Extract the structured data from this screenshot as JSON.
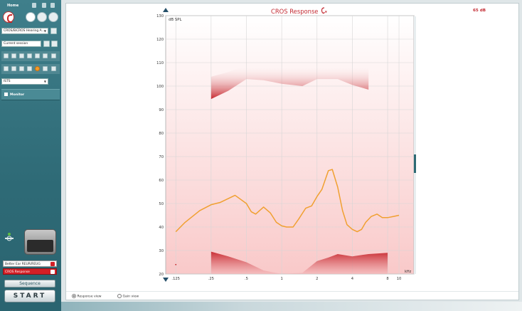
{
  "sidebar": {
    "home_label": "Home",
    "hearing_aid_select": "CROS/BiCROS Hearing A...",
    "session_select": "Current session",
    "stimulus_select": "ISTS",
    "monitor_label": "Monitor",
    "programs": [
      {
        "label": "Better Ear REUR/REUG"
      },
      {
        "label": "CROS Response"
      }
    ],
    "sequence_label": "Sequence",
    "start_label": "START"
  },
  "chart": {
    "title": "CROS Response",
    "level": "65 dB"
  },
  "view_options": {
    "response_view": "Response view",
    "gain_view": "Gain view",
    "selected": "Response view"
  },
  "chart_data": {
    "type": "line",
    "ylabel": "dB SPL",
    "xunit": "kHz",
    "ylim": [
      20,
      130
    ],
    "yticks": [
      20,
      30,
      40,
      50,
      60,
      70,
      80,
      90,
      100,
      110,
      120,
      130
    ],
    "xticks_khz": [
      0.125,
      0.25,
      0.5,
      1,
      2,
      4,
      8,
      10
    ],
    "xtick_labels": [
      ".125",
      ".25",
      ".5",
      "1",
      "2",
      "4",
      "8",
      "10"
    ],
    "grid": true,
    "series": [
      {
        "color": "#f0a030",
        "x": [
          0.125,
          0.15,
          0.2,
          0.25,
          0.3,
          0.4,
          0.5,
          0.55,
          0.6,
          0.7,
          0.8,
          0.9,
          1.0,
          1.1,
          1.25,
          1.4,
          1.6,
          1.8,
          2.0,
          2.2,
          2.5,
          2.7,
          3.0,
          3.3,
          3.6,
          4.0,
          4.4,
          4.8,
          5.2,
          5.8,
          6.5,
          7.2,
          8.0,
          9.0,
          10.0
        ],
        "y": [
          38,
          42,
          47,
          49.5,
          50.5,
          53.5,
          50,
          46.5,
          45.5,
          48.5,
          46,
          42,
          40.5,
          40,
          40,
          43.5,
          48,
          49,
          53,
          56,
          64,
          64.5,
          57,
          47,
          41,
          39,
          38,
          39,
          42,
          44.5,
          45.5,
          44,
          44,
          44.5,
          45
        ]
      }
    ],
    "upper_band": {
      "color": "#c41e25",
      "x": [
        0.25,
        0.35,
        0.5,
        0.7,
        1.0,
        1.5,
        2.0,
        3.0,
        4.0,
        5.5
      ],
      "low": [
        94.5,
        98,
        103,
        102.5,
        101,
        100,
        103,
        103,
        100.5,
        98.5
      ],
      "high": [
        104,
        106,
        109,
        108.5,
        108,
        107.5,
        109,
        109,
        108,
        108
      ]
    },
    "lower_band": {
      "color": "#c41e25",
      "x": [
        0.25,
        0.35,
        0.5,
        0.7,
        1.0,
        1.5,
        2.0,
        2.5,
        3.0,
        4.0,
        5.5,
        8.0
      ],
      "top": [
        29.5,
        27.5,
        25,
        21.5,
        20,
        20.5,
        25.5,
        27,
        28.5,
        27.5,
        28.5,
        29
      ]
    }
  }
}
